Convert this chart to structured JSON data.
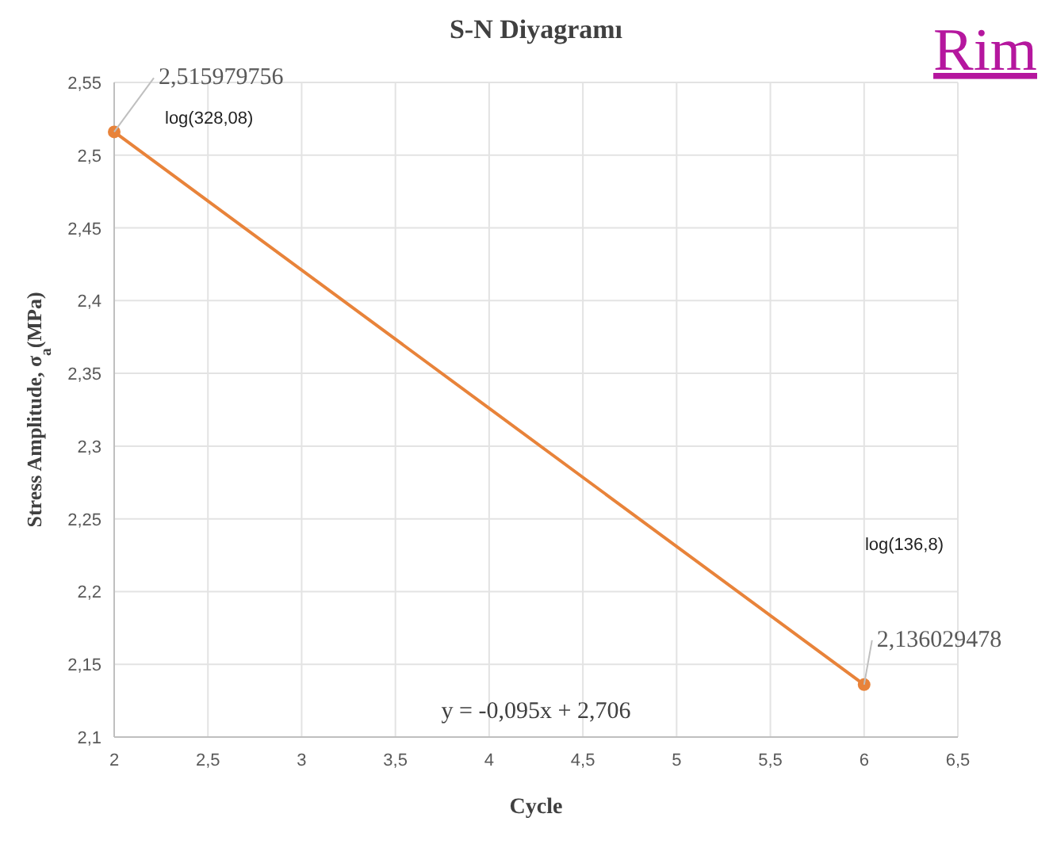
{
  "chart_data": {
    "type": "line",
    "title": "S-N Diyagramı",
    "xlabel": "Cycle",
    "ylabel": "Stress Amplitude, σ$_{a}$(MPa)",
    "x": [
      2,
      6
    ],
    "series": [
      {
        "color": "#e8833a",
        "values": [
          2.515979756,
          2.136029478
        ]
      }
    ],
    "xlim": [
      2,
      6.5
    ],
    "xticks": [
      2,
      {
        "value": 2.5,
        "label": "2,5"
      },
      3,
      {
        "value": 3.5,
        "label": "3,5"
      },
      4,
      {
        "value": 4.5,
        "label": "4,5"
      },
      5,
      {
        "value": 5.5,
        "label": "5,5"
      },
      6,
      {
        "value": 6.5,
        "label": "6,5"
      }
    ],
    "ylim": [
      2.1,
      2.55
    ],
    "yticks": [
      {
        "value": 2.1,
        "label": "2,1"
      },
      {
        "value": 2.15,
        "label": "2,15"
      },
      {
        "value": 2.2,
        "label": "2,2"
      },
      {
        "value": 2.25,
        "label": "2,25"
      },
      {
        "value": 2.3,
        "label": "2,3"
      },
      {
        "value": 2.35,
        "label": "2,35"
      },
      {
        "value": 2.4,
        "label": "2,4"
      },
      {
        "value": 2.45,
        "label": "2,45"
      },
      {
        "value": 2.5,
        "label": "2,5"
      },
      {
        "value": 2.55,
        "label": "2,55"
      }
    ],
    "grid": true,
    "marker": "circle",
    "line_style": "solid",
    "annotations": [
      {
        "text": "2,515979756",
        "x": 2,
        "y": 2.515979756
      },
      "log(328,08)",
      "log(136,8)",
      {
        "text": "2,136029478",
        "x": 6,
        "y": 2.136029478
      },
      "y = -0,095x + 2,706",
      "Rim"
    ]
  }
}
